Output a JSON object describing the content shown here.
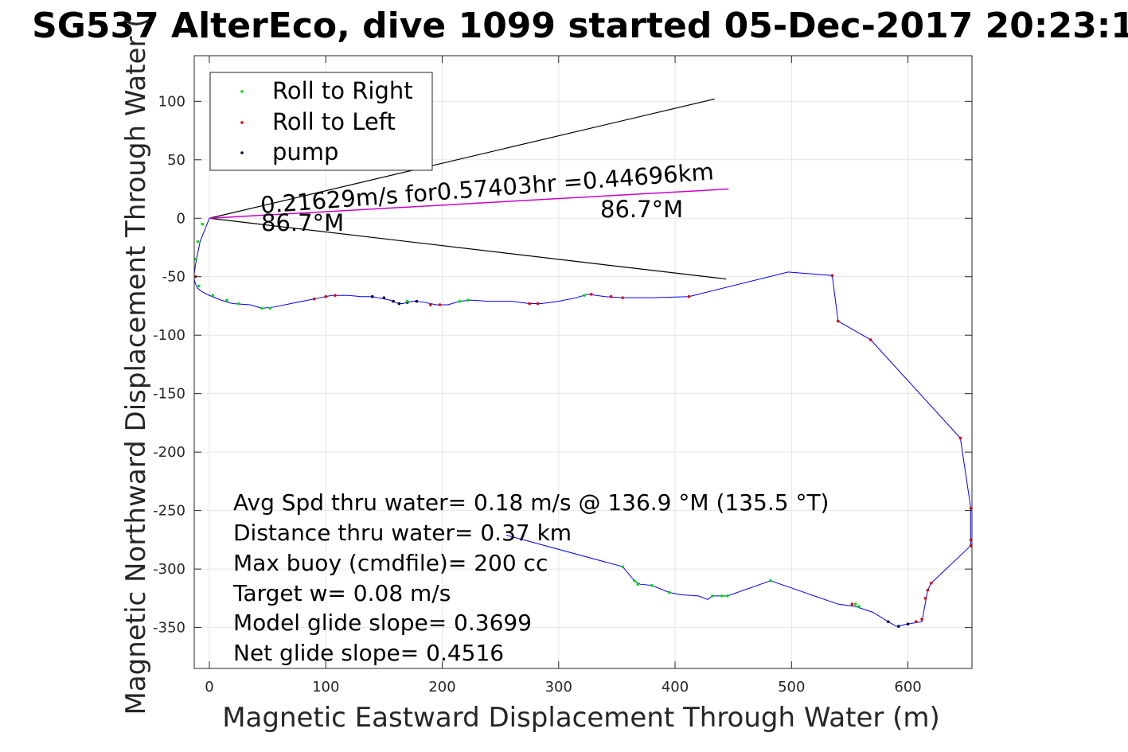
{
  "chart_data": {
    "type": "line",
    "title": "SG537 AlterEco, dive 1099 started 05-Dec-2017 20:23:1",
    "xlabel": "Magnetic Eastward Displacement Through Water (m)",
    "ylabel": "Magnetic Northward Displacement Through Water (",
    "xlim": [
      -13,
      655
    ],
    "ylim": [
      -385,
      139
    ],
    "xticks": [
      0,
      100,
      200,
      300,
      400,
      500,
      600
    ],
    "yticks": [
      100,
      50,
      0,
      -50,
      -100,
      -150,
      -200,
      -250,
      -300,
      -350
    ],
    "grid": true,
    "legend_position": "top-left",
    "legend": [
      {
        "label": "Roll to Right",
        "color": "#00dd00"
      },
      {
        "label": "Roll to Left",
        "color": "#dd0000"
      },
      {
        "label": "pump",
        "color": "#000033"
      }
    ],
    "colors": {
      "track": "#0000ff",
      "current": "#cc00cc",
      "cone": "#000000",
      "grid": "#e6e6e6"
    },
    "series": [
      {
        "type": "track",
        "x": [
          0,
          -4,
          -8,
          -10,
          -12,
          -13,
          -13,
          -12,
          -10,
          -6,
          0,
          10,
          20,
          35,
          45,
          55,
          70,
          85,
          95,
          105,
          110,
          120,
          130,
          140,
          145,
          150,
          155,
          160,
          163,
          166,
          170,
          175,
          178,
          185,
          195,
          205,
          215,
          225,
          240,
          260,
          275,
          285,
          300,
          315,
          325,
          340,
          355,
          380,
          412,
          497,
          535,
          540,
          568,
          645,
          654,
          654,
          654,
          654,
          654,
          620,
          617,
          612,
          600,
          590,
          583,
          570,
          555,
          540,
          482,
          445,
          440,
          432,
          428,
          420,
          405,
          395,
          380,
          370,
          365,
          355,
          255
        ],
        "y": [
          0,
          -10,
          -20,
          -30,
          -40,
          -48,
          -52,
          -56,
          -60,
          -63,
          -66,
          -70,
          -73,
          -74,
          -77,
          -76,
          -73,
          -70,
          -68,
          -66,
          -66,
          -66,
          -67,
          -67,
          -68,
          -69,
          -70,
          -72,
          -73,
          -73,
          -72,
          -71,
          -71,
          -72,
          -74,
          -74,
          -71,
          -70,
          -71,
          -71,
          -73,
          -73,
          -71,
          -68,
          -65,
          -67,
          -68,
          -68,
          -67,
          -46,
          -49,
          -88,
          -104,
          -188,
          -248,
          -275,
          -280,
          -280,
          -280,
          -312,
          -318,
          -345,
          -347,
          -349,
          -345,
          -337,
          -332,
          -330,
          -310,
          -323,
          -323,
          -323,
          -326,
          -323,
          -322,
          -320,
          -314,
          -313,
          -310,
          -298,
          -271
        ]
      },
      {
        "type": "current",
        "x": [
          0,
          446
        ],
        "y": [
          0,
          25
        ]
      }
    ],
    "cone": [
      {
        "x": [
          0,
          434
        ],
        "y": [
          0,
          102
        ]
      },
      {
        "x": [
          0,
          444
        ],
        "y": [
          0,
          -52
        ]
      }
    ],
    "markers": [
      {
        "x": -6,
        "y": -5,
        "kind": "right"
      },
      {
        "x": -10,
        "y": -20,
        "kind": "right"
      },
      {
        "x": -12,
        "y": -35,
        "kind": "right"
      },
      {
        "x": -12,
        "y": -50,
        "kind": "left"
      },
      {
        "x": -9,
        "y": -58,
        "kind": "right"
      },
      {
        "x": 3,
        "y": -66,
        "kind": "right"
      },
      {
        "x": 15,
        "y": -70,
        "kind": "right"
      },
      {
        "x": 25,
        "y": -73,
        "kind": "right"
      },
      {
        "x": 45,
        "y": -77,
        "kind": "right"
      },
      {
        "x": 52,
        "y": -77,
        "kind": "right"
      },
      {
        "x": 90,
        "y": -69,
        "kind": "left"
      },
      {
        "x": 100,
        "y": -67,
        "kind": "left"
      },
      {
        "x": 108,
        "y": -66,
        "kind": "left"
      },
      {
        "x": 140,
        "y": -67,
        "kind": "pump"
      },
      {
        "x": 150,
        "y": -68,
        "kind": "pump"
      },
      {
        "x": 158,
        "y": -71,
        "kind": "pump"
      },
      {
        "x": 163,
        "y": -73,
        "kind": "pump"
      },
      {
        "x": 170,
        "y": -72,
        "kind": "pump"
      },
      {
        "x": 178,
        "y": -71,
        "kind": "pump"
      },
      {
        "x": 170,
        "y": -71,
        "kind": "right"
      },
      {
        "x": 190,
        "y": -74,
        "kind": "left"
      },
      {
        "x": 198,
        "y": -74,
        "kind": "left"
      },
      {
        "x": 215,
        "y": -71,
        "kind": "right"
      },
      {
        "x": 222,
        "y": -70,
        "kind": "right"
      },
      {
        "x": 275,
        "y": -73,
        "kind": "left"
      },
      {
        "x": 282,
        "y": -73,
        "kind": "left"
      },
      {
        "x": 322,
        "y": -66,
        "kind": "right"
      },
      {
        "x": 328,
        "y": -65,
        "kind": "left"
      },
      {
        "x": 345,
        "y": -67,
        "kind": "left"
      },
      {
        "x": 355,
        "y": -68,
        "kind": "left"
      },
      {
        "x": 412,
        "y": -67,
        "kind": "left"
      },
      {
        "x": 535,
        "y": -49,
        "kind": "left"
      },
      {
        "x": 540,
        "y": -88,
        "kind": "left"
      },
      {
        "x": 568,
        "y": -104,
        "kind": "left"
      },
      {
        "x": 645,
        "y": -188,
        "kind": "left"
      },
      {
        "x": 654,
        "y": -248,
        "kind": "left"
      },
      {
        "x": 654,
        "y": -275,
        "kind": "left"
      },
      {
        "x": 654,
        "y": -280,
        "kind": "left"
      },
      {
        "x": 620,
        "y": -312,
        "kind": "left"
      },
      {
        "x": 617,
        "y": -318,
        "kind": "left"
      },
      {
        "x": 615,
        "y": -325,
        "kind": "left"
      },
      {
        "x": 612,
        "y": -343,
        "kind": "left"
      },
      {
        "x": 607,
        "y": -345,
        "kind": "left"
      },
      {
        "x": 600,
        "y": -347,
        "kind": "pump"
      },
      {
        "x": 592,
        "y": -349,
        "kind": "pump"
      },
      {
        "x": 583,
        "y": -345,
        "kind": "pump"
      },
      {
        "x": 558,
        "y": -332,
        "kind": "right"
      },
      {
        "x": 555,
        "y": -330,
        "kind": "right"
      },
      {
        "x": 552,
        "y": -330,
        "kind": "left"
      },
      {
        "x": 482,
        "y": -310,
        "kind": "right"
      },
      {
        "x": 445,
        "y": -323,
        "kind": "right"
      },
      {
        "x": 440,
        "y": -323,
        "kind": "right"
      },
      {
        "x": 432,
        "y": -323,
        "kind": "right"
      },
      {
        "x": 395,
        "y": -320,
        "kind": "right"
      },
      {
        "x": 380,
        "y": -314,
        "kind": "right"
      },
      {
        "x": 368,
        "y": -313,
        "kind": "right"
      },
      {
        "x": 365,
        "y": -310,
        "kind": "right"
      },
      {
        "x": 355,
        "y": -298,
        "kind": "right"
      }
    ],
    "annotations": [
      {
        "text": "0.21629m/s for0.57403hr =0.44696km"
      },
      {
        "text": "86.7°M"
      },
      {
        "text": "86.7°M"
      }
    ],
    "stats": [
      "Avg Spd thru water=  0.18 m/s @ 136.9 °M (135.5 °T)",
      "Distance thru water=  0.37 km",
      "Max buoy (cmdfile)= 200 cc",
      "Target w= 0.08 m/s",
      "Model glide slope= 0.3699",
      "Net glide slope= 0.4516"
    ]
  }
}
